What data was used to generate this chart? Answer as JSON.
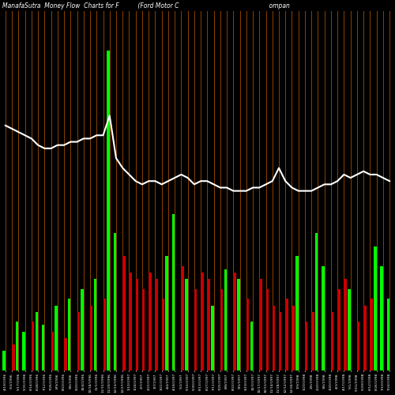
{
  "title": "ManafaSutra  Money Flow  Charts for F          (Ford Motor C                                                ompan",
  "background_color": "#000000",
  "line_color": "#ffffff",
  "green_color": "#00ff00",
  "red_color": "#cc0000",
  "orange_color": "#8B4000",
  "figsize": [
    5.0,
    5.0
  ],
  "dpi": 100,
  "green_bars": [
    0.6,
    0.0,
    1.5,
    1.2,
    0.0,
    1.8,
    1.4,
    0.0,
    2.0,
    0.0,
    2.2,
    0.0,
    2.5,
    0.0,
    2.8,
    0.0,
    9.8,
    4.2,
    0.0,
    0.0,
    0.0,
    0.0,
    0.0,
    0.0,
    0.0,
    3.5,
    4.8,
    0.0,
    2.8,
    0.0,
    0.0,
    0.0,
    2.0,
    0.0,
    3.1,
    0.0,
    2.8,
    0.0,
    1.5,
    0.0,
    0.0,
    0.0,
    0.0,
    0.0,
    0.0,
    3.5,
    0.0,
    0.0,
    4.2,
    3.2,
    0.0,
    0.0,
    0.0,
    2.5,
    0.0,
    0.0,
    0.0,
    3.8,
    3.2,
    2.2
  ],
  "red_bars": [
    0.0,
    0.8,
    0.0,
    0.0,
    1.5,
    0.0,
    0.0,
    1.2,
    0.0,
    1.0,
    0.0,
    1.8,
    0.0,
    2.0,
    0.0,
    2.2,
    0.0,
    0.0,
    3.5,
    3.0,
    2.8,
    2.5,
    3.0,
    2.8,
    2.2,
    0.0,
    0.0,
    3.2,
    0.0,
    2.5,
    3.0,
    2.8,
    0.0,
    2.5,
    0.0,
    3.0,
    0.0,
    2.2,
    0.0,
    2.8,
    2.5,
    2.0,
    1.8,
    2.2,
    2.0,
    0.0,
    1.5,
    1.8,
    0.0,
    0.0,
    1.8,
    2.5,
    2.8,
    0.0,
    1.5,
    2.0,
    2.2,
    0.0,
    0.0,
    0.0
  ],
  "line_y": [
    7.5,
    7.4,
    7.3,
    7.2,
    7.1,
    6.9,
    6.8,
    6.8,
    6.9,
    6.9,
    7.0,
    7.0,
    7.1,
    7.1,
    7.2,
    7.2,
    7.8,
    6.5,
    6.2,
    6.0,
    5.8,
    5.7,
    5.8,
    5.8,
    5.7,
    5.8,
    5.9,
    6.0,
    5.9,
    5.7,
    5.8,
    5.8,
    5.7,
    5.6,
    5.6,
    5.5,
    5.5,
    5.5,
    5.6,
    5.6,
    5.7,
    5.8,
    6.2,
    5.8,
    5.6,
    5.5,
    5.5,
    5.5,
    5.6,
    5.7,
    5.7,
    5.8,
    6.0,
    5.9,
    6.0,
    6.1,
    6.0,
    6.0,
    5.9,
    5.8
  ],
  "dates": [
    "4/19/1996",
    "5/3/1996",
    "5/17/1996",
    "5/31/1996",
    "6/14/1996",
    "6/28/1996",
    "7/12/1996",
    "7/26/1996",
    "8/9/1996",
    "8/23/1996",
    "9/6/1996",
    "9/20/1996",
    "10/4/1996",
    "10/18/1996",
    "11/1/1996",
    "11/15/1996",
    "11/29/1996",
    "12/13/1996",
    "12/27/1996",
    "1/10/1997",
    "1/24/1997",
    "2/7/1997",
    "2/21/1997",
    "3/7/1997",
    "3/21/1997",
    "4/4/1997",
    "4/18/1997",
    "5/2/1997",
    "5/16/1997",
    "5/30/1997",
    "6/13/1997",
    "6/27/1997",
    "7/11/1997",
    "7/25/1997",
    "8/8/1997",
    "8/22/1997",
    "9/5/1997",
    "9/19/1997",
    "10/3/1997",
    "10/17/1997",
    "10/31/1997",
    "11/14/1997",
    "11/28/1997",
    "12/12/1997",
    "12/26/1997",
    "1/9/1998",
    "1/23/1998",
    "2/6/1998",
    "2/20/1998",
    "3/6/1998",
    "3/20/1998",
    "4/3/1998",
    "4/17/1998",
    "5/1/1998",
    "5/15/1998",
    "5/29/1998",
    "6/12/1998",
    "6/26/1998",
    "7/10/1998",
    "7/24/1998"
  ]
}
